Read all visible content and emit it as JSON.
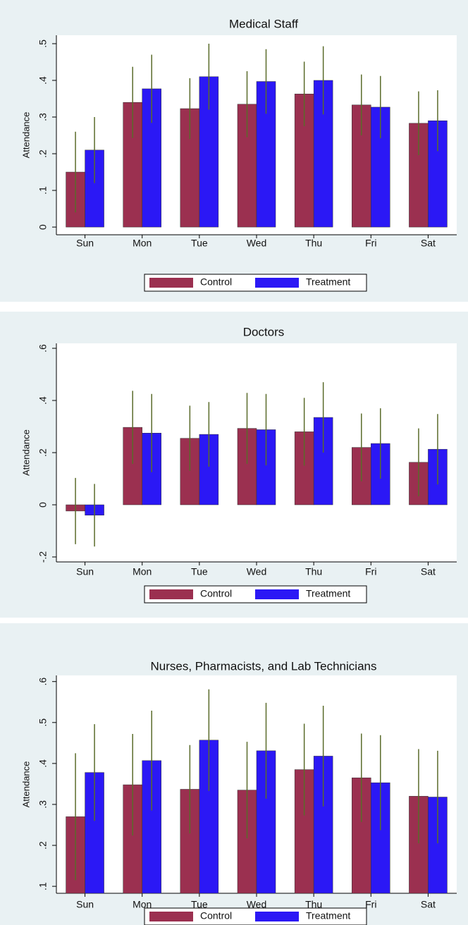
{
  "chart_data": [
    {
      "type": "bar",
      "title": "Medical Staff",
      "y_label": "Attendance",
      "categories": [
        "Sun",
        "Mon",
        "Tue",
        "Wed",
        "Thu",
        "Fri",
        "Sat"
      ],
      "series": [
        {
          "name": "Control",
          "color": "#9b3050",
          "values": [
            0.15,
            0.34,
            0.323,
            0.335,
            0.363,
            0.333,
            0.283
          ],
          "errors": [
            0.11,
            0.097,
            0.083,
            0.09,
            0.088,
            0.083,
            0.087
          ]
        },
        {
          "name": "Treatment",
          "color": "#2b18f5",
          "values": [
            0.21,
            0.377,
            0.41,
            0.397,
            0.4,
            0.327,
            0.29
          ],
          "errors": [
            0.09,
            0.093,
            0.09,
            0.088,
            0.093,
            0.085,
            0.083
          ]
        }
      ],
      "error_color": "#5a6b2a",
      "ylim": [
        -0.021,
        0.523
      ],
      "yticks": [
        0,
        {
          "value": 0.1,
          "label": ".1"
        },
        {
          "value": 0.2,
          "label": ".2"
        },
        {
          "value": 0.3,
          "label": ".3"
        },
        {
          "value": 0.4,
          "label": ".4"
        },
        {
          "value": 0.5,
          "label": ".5"
        }
      ]
    },
    {
      "type": "bar",
      "title": "Doctors",
      "y_label": "Attendance",
      "categories": [
        "Sun",
        "Mon",
        "Tue",
        "Wed",
        "Thu",
        "Fri",
        "Sat"
      ],
      "series": [
        {
          "name": "Control",
          "color": "#9b3050",
          "values": [
            -0.024,
            0.297,
            0.255,
            0.293,
            0.28,
            0.22,
            0.163
          ],
          "errors": [
            0.127,
            0.14,
            0.125,
            0.136,
            0.13,
            0.13,
            0.13
          ]
        },
        {
          "name": "Treatment",
          "color": "#2b18f5",
          "values": [
            -0.04,
            0.275,
            0.27,
            0.288,
            0.335,
            0.235,
            0.213
          ],
          "errors": [
            0.12,
            0.15,
            0.124,
            0.137,
            0.135,
            0.135,
            0.135
          ]
        }
      ],
      "error_color": "#5a6b2a",
      "ylim": [
        -0.219,
        0.619
      ],
      "yticks": [
        {
          "value": -0.2,
          "label": "-.2"
        },
        0,
        {
          "value": 0.2,
          "label": ".2"
        },
        {
          "value": 0.4,
          "label": ".4"
        },
        {
          "value": 0.6,
          "label": ".6"
        }
      ]
    },
    {
      "type": "bar",
      "title": "Nurses, Pharmacists, and Lab Technicians",
      "y_label": "Attendance",
      "categories": [
        "Sun",
        "Mon",
        "Tue",
        "Wed",
        "Thu",
        "Fri",
        "Sat"
      ],
      "series": [
        {
          "name": "Control",
          "color": "#9b3050",
          "values": [
            0.27,
            0.348,
            0.337,
            0.335,
            0.385,
            0.365,
            0.32
          ],
          "errors": [
            0.155,
            0.124,
            0.108,
            0.118,
            0.112,
            0.108,
            0.115
          ]
        },
        {
          "name": "Treatment",
          "color": "#2b18f5",
          "values": [
            0.378,
            0.407,
            0.457,
            0.431,
            0.418,
            0.353,
            0.318
          ],
          "errors": [
            0.118,
            0.122,
            0.124,
            0.117,
            0.123,
            0.116,
            0.113
          ]
        }
      ],
      "error_color": "#5a6b2a",
      "ylim": [
        0.083,
        0.615
      ],
      "yticks": [
        {
          "value": 0.1,
          "label": ".1"
        },
        {
          "value": 0.2,
          "label": ".2"
        },
        {
          "value": 0.3,
          "label": ".3"
        },
        {
          "value": 0.4,
          "label": ".4"
        },
        {
          "value": 0.5,
          "label": ".5"
        },
        {
          "value": 0.6,
          "label": ".6"
        }
      ]
    }
  ]
}
